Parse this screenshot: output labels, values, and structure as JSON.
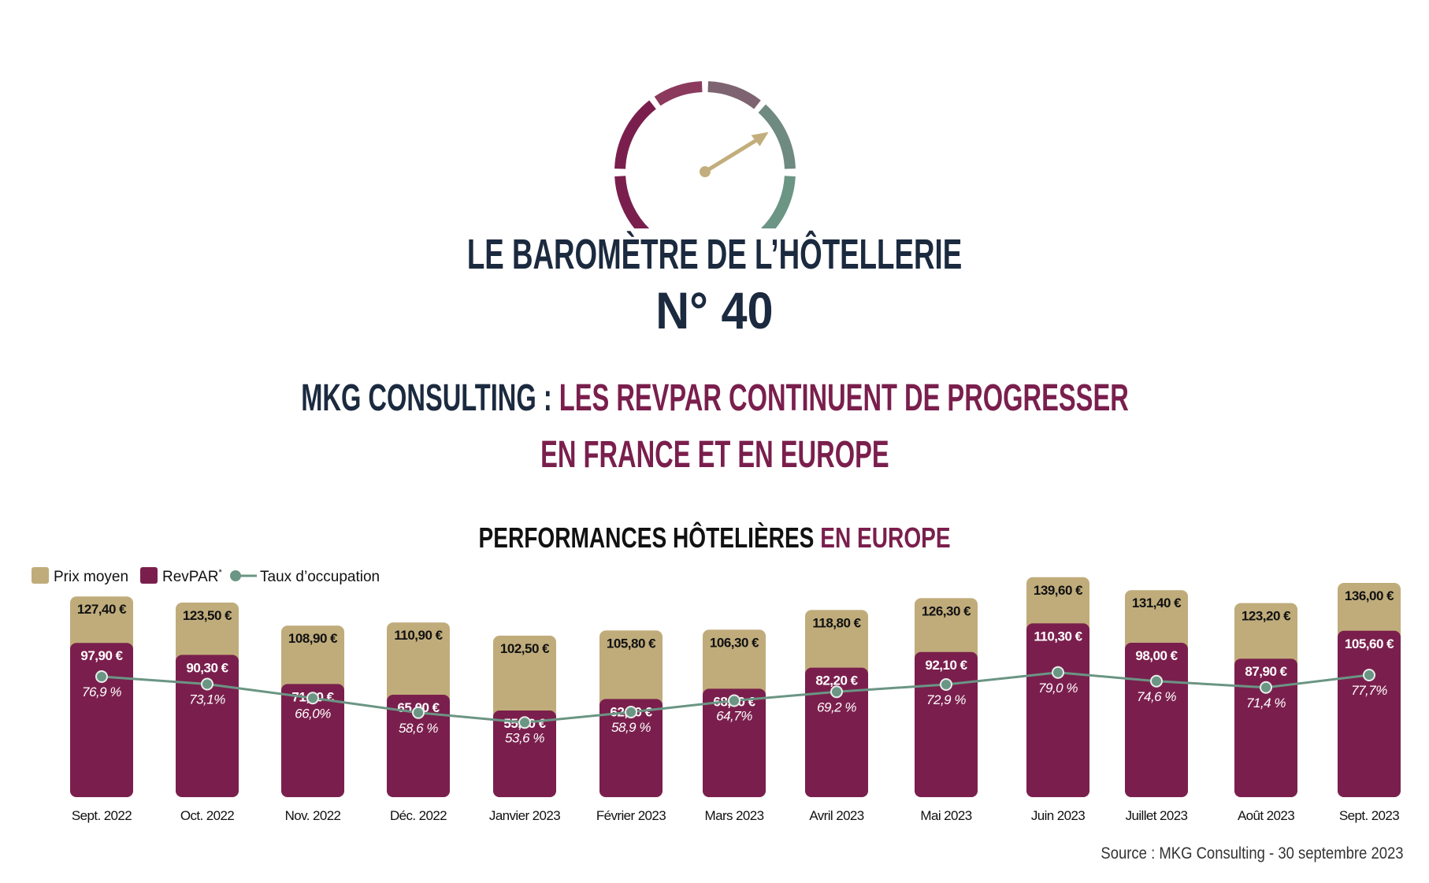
{
  "header": {
    "title": "LE BAROMÈTRE DE L’HÔTELLERIE",
    "number": "N° 40",
    "headline_part1": "MKG CONSULTING : ",
    "headline_part2": "LES REVPAR CONTINUENT DE PROGRESSER",
    "headline_line2": "EN FRANCE ET EN EUROPE"
  },
  "gauge": {
    "icon": "speedometer-icon",
    "colors": [
      "#7a1f4d",
      "#8b3a5e",
      "#7d6470",
      "#6f8a80",
      "#6b9584"
    ],
    "needle_color": "#c2ae7c"
  },
  "colors": {
    "prix_moyen": "#c0ac7b",
    "revpar": "#7a1f4d",
    "occupation": "#6b9584",
    "navy": "#1b2a3f"
  },
  "chart_data": {
    "type": "bar",
    "title_part1": "PERFORMANCES HÔTELIÈRES ",
    "title_part2": "EN EUROPE",
    "legend": [
      "Prix moyen",
      "RevPAR",
      "Taux d’occupation"
    ],
    "legend_revpar_mark": "*",
    "legend_placement": "top-left",
    "grid": false,
    "categories": [
      "Sept. 2022",
      "Oct. 2022",
      "Nov. 2022",
      "Déc. 2022",
      "Janvier 2023",
      "Février 2023",
      "Mars 2023",
      "Avril 2023",
      "Mai 2023",
      "Juin 2023",
      "Juillet 2023",
      "Août 2023",
      "Sept. 2023"
    ],
    "series": [
      {
        "name": "Prix moyen",
        "unit": "€",
        "values": [
          127.4,
          123.5,
          108.9,
          110.9,
          102.5,
          105.8,
          106.3,
          118.8,
          126.3,
          139.6,
          131.4,
          123.2,
          136.0
        ],
        "labels": [
          "127,40 €",
          "123,50 €",
          "108,90 €",
          "110,90 €",
          "102,50 €",
          "105,80 €",
          "106,30 €",
          "118,80 €",
          "126,30 €",
          "139,60 €",
          "131,40 €",
          "123,20 €",
          "136,00 €"
        ]
      },
      {
        "name": "RevPAR",
        "unit": "€",
        "values": [
          97.9,
          90.3,
          71.8,
          65.0,
          55.0,
          62.3,
          68.8,
          82.2,
          92.1,
          110.3,
          98.0,
          87.9,
          105.6
        ],
        "labels": [
          "97,90 €",
          "90,30 €",
          "71,80 €",
          "65,00 €",
          "55,00 €",
          "62,30 €",
          "68,80 €",
          "82,20 €",
          "92,10 €",
          "110,30 €",
          "98,00 €",
          "87,90 €",
          "105,60 €"
        ]
      },
      {
        "name": "Taux d’occupation",
        "type": "line",
        "unit": "%",
        "values": [
          76.9,
          73.1,
          66.0,
          58.6,
          53.6,
          58.9,
          64.7,
          69.2,
          72.9,
          79.0,
          74.6,
          71.4,
          77.7
        ],
        "labels": [
          "76,9 %",
          "73,1%",
          "66,0%",
          "58,6 %",
          "53,6 %",
          "58,9 %",
          "64,7%",
          "69,2 %",
          "72,9 %",
          "79,0 %",
          "74,6 %",
          "71,4 %",
          "77,7%"
        ]
      }
    ],
    "source": "Source : MKG Consulting - 30 septembre 2023"
  }
}
